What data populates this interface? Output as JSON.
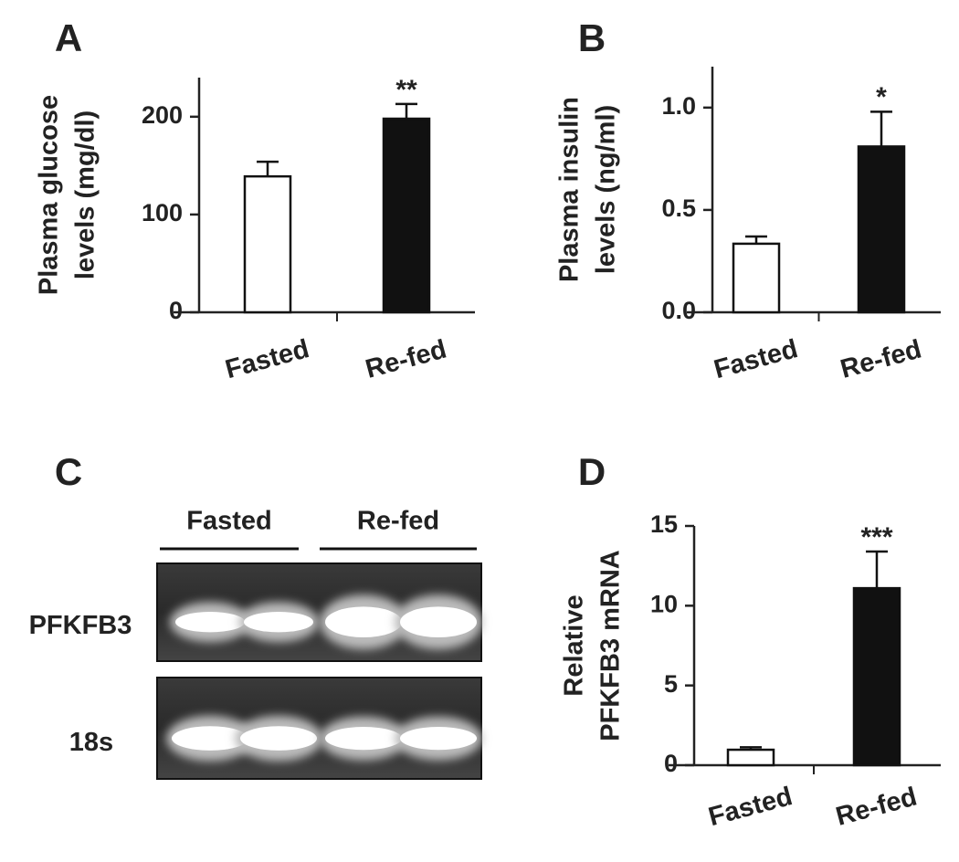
{
  "chart_data": [
    {
      "type": "bar",
      "label": "A",
      "ylabel": [
        "Plasma glucose",
        "levels (mg/dl)"
      ],
      "categories": [
        "Fasted",
        "Re-fed"
      ],
      "values": [
        139,
        198
      ],
      "errors": [
        15,
        15
      ],
      "significance": [
        null,
        "**"
      ],
      "colors": [
        "#ffffff",
        "#111111"
      ],
      "ylim": [
        0,
        240
      ],
      "yticks": [
        0,
        100,
        200
      ]
    },
    {
      "type": "bar",
      "label": "B",
      "ylabel": [
        "Plasma insulin",
        "levels (ng/ml)"
      ],
      "categories": [
        "Fasted",
        "Re-fed"
      ],
      "values": [
        0.335,
        0.81
      ],
      "errors": [
        0.035,
        0.17
      ],
      "significance": [
        null,
        "*"
      ],
      "colors": [
        "#ffffff",
        "#111111"
      ],
      "ylim": [
        0,
        1.2
      ],
      "yticks": [
        {
          "value": 0,
          "label": "0.0"
        },
        {
          "value": 0.5,
          "label": "0.5"
        },
        {
          "value": 1,
          "label": "1.0"
        }
      ]
    },
    {
      "type": "gel",
      "label": "C",
      "groups": [
        "Fasted",
        "Re-fed"
      ],
      "rows": [
        "PFKFB3",
        "18s"
      ]
    },
    {
      "type": "bar",
      "label": "D",
      "ylabel": [
        "Relative",
        "PFKFB3 mRNA"
      ],
      "categories": [
        "Fasted",
        "Re-fed"
      ],
      "values": [
        0.97,
        11.1
      ],
      "errors": [
        0.15,
        2.3
      ],
      "significance": [
        null,
        "***"
      ],
      "colors": [
        "#ffffff",
        "#111111"
      ],
      "ylim": [
        0,
        15
      ],
      "yticks": [
        0,
        5,
        10,
        15
      ]
    }
  ]
}
